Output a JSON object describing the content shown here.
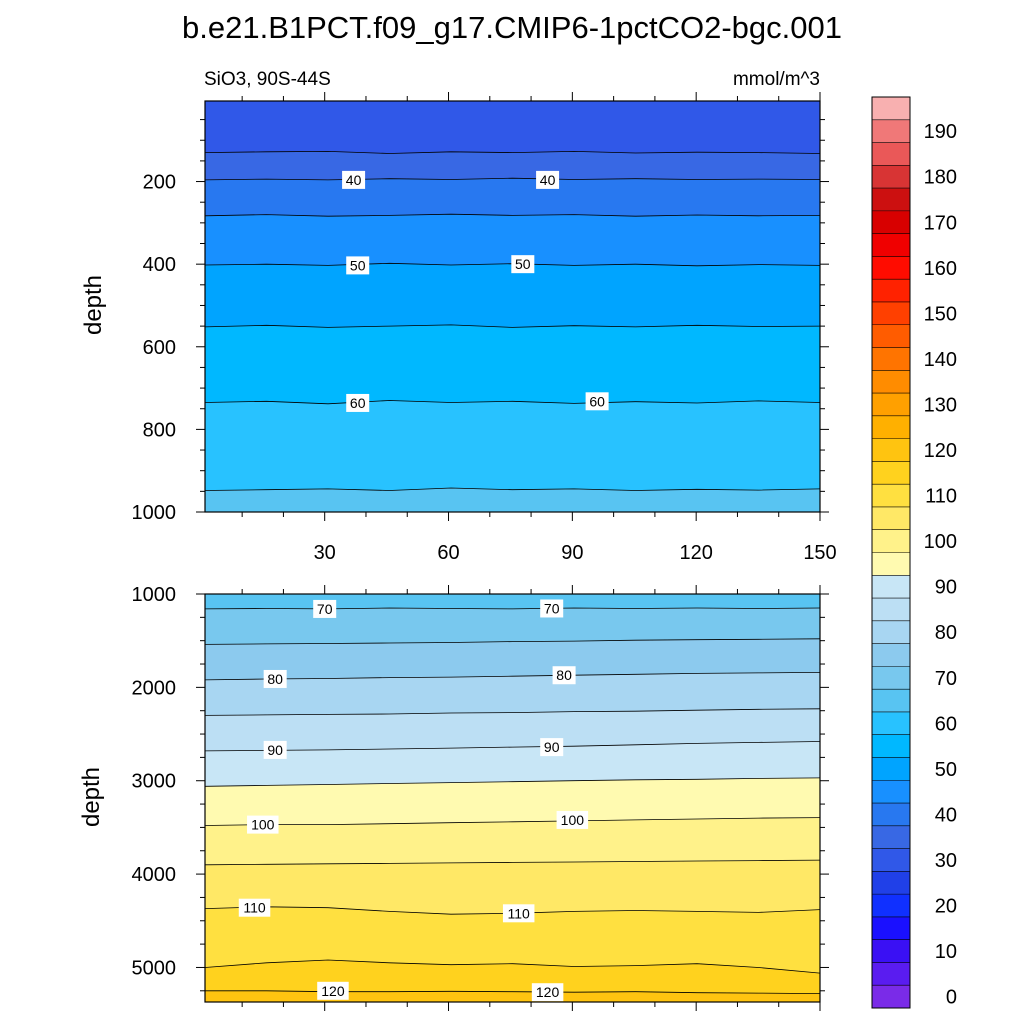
{
  "title": "b.e21.B1PCT.f09_g17.CMIP6-1pctCO2-bgc.001",
  "chart_data": [
    {
      "type": "heatmap",
      "panel": "upper",
      "left_label": "SiO3, 90S-44S",
      "right_label": "mmol/m^3",
      "ylabel": "depth",
      "xlabel": "",
      "xlim": [
        1,
        150
      ],
      "ylim": [
        1000,
        5
      ],
      "x_ticks": [
        30,
        60,
        90,
        120,
        150
      ],
      "x_tick_labels": [
        "30",
        "60",
        "90",
        "120",
        "150"
      ],
      "y_ticks": [
        200,
        400,
        600,
        800,
        1000
      ],
      "y_tick_labels": [
        "200",
        "400",
        "600",
        "800",
        "1000"
      ],
      "contour_levels": [
        35,
        40,
        45,
        50,
        55,
        60,
        65
      ],
      "contours": [
        {
          "level": 35,
          "depth": [
            130,
            128,
            127,
            132,
            128,
            130,
            127,
            131,
            129,
            130,
            132
          ]
        },
        {
          "level": 40,
          "depth": [
            196,
            194,
            196,
            193,
            195,
            192,
            195,
            193,
            195,
            194,
            195
          ]
        },
        {
          "level": 45,
          "depth": [
            283,
            280,
            284,
            282,
            279,
            282,
            280,
            284,
            281,
            283,
            282
          ]
        },
        {
          "level": 50,
          "depth": [
            402,
            400,
            403,
            398,
            402,
            399,
            403,
            400,
            404,
            401,
            403
          ]
        },
        {
          "level": 55,
          "depth": [
            552,
            548,
            553,
            550,
            547,
            553,
            549,
            552,
            548,
            551,
            550
          ]
        },
        {
          "level": 60,
          "depth": [
            735,
            732,
            738,
            730,
            735,
            732,
            737,
            733,
            736,
            731,
            735
          ]
        },
        {
          "level": 65,
          "depth": [
            948,
            946,
            944,
            948,
            942,
            946,
            944,
            948,
            945,
            947,
            944
          ]
        }
      ],
      "contour_labels": [
        {
          "text": "40",
          "x": 37,
          "depth": 196
        },
        {
          "text": "40",
          "x": 84,
          "depth": 196
        },
        {
          "text": "50",
          "x": 38,
          "depth": 403
        },
        {
          "text": "50",
          "x": 78,
          "depth": 400
        },
        {
          "text": "60",
          "x": 38,
          "depth": 736
        },
        {
          "text": "60",
          "x": 96,
          "depth": 732
        }
      ]
    },
    {
      "type": "heatmap",
      "panel": "lower",
      "ylabel": "depth",
      "xlabel": "",
      "xlim": [
        1,
        150
      ],
      "ylim": [
        5370,
        1000
      ],
      "x_ticks": [
        30,
        60,
        90,
        120,
        150
      ],
      "y_ticks": [
        1000,
        2000,
        3000,
        4000,
        5000
      ],
      "y_tick_labels": [
        "1000",
        "2000",
        "3000",
        "4000",
        "5000"
      ],
      "contour_levels": [
        70,
        75,
        80,
        85,
        90,
        95,
        100,
        105,
        110,
        115,
        120
      ],
      "contours": [
        {
          "level": 70,
          "depth": [
            1160,
            1155,
            1160,
            1150,
            1155,
            1160,
            1150,
            1155,
            1150,
            1155,
            1150
          ]
        },
        {
          "level": 75,
          "depth": [
            1540,
            1535,
            1530,
            1525,
            1520,
            1510,
            1505,
            1495,
            1490,
            1485,
            1480
          ]
        },
        {
          "level": 80,
          "depth": [
            1920,
            1910,
            1905,
            1895,
            1890,
            1880,
            1870,
            1860,
            1850,
            1845,
            1840
          ]
        },
        {
          "level": 85,
          "depth": [
            2300,
            2295,
            2290,
            2285,
            2275,
            2270,
            2260,
            2255,
            2245,
            2235,
            2230
          ]
        },
        {
          "level": 90,
          "depth": [
            2680,
            2675,
            2670,
            2660,
            2650,
            2640,
            2630,
            2615,
            2600,
            2590,
            2580
          ]
        },
        {
          "level": 95,
          "depth": [
            3060,
            3050,
            3040,
            3030,
            3020,
            3010,
            3000,
            2990,
            2985,
            2975,
            2970
          ]
        },
        {
          "level": 100,
          "depth": [
            3480,
            3470,
            3470,
            3460,
            3450,
            3440,
            3430,
            3420,
            3410,
            3400,
            3395
          ]
        },
        {
          "level": 105,
          "depth": [
            3900,
            3895,
            3890,
            3885,
            3880,
            3875,
            3870,
            3865,
            3860,
            3855,
            3850
          ]
        },
        {
          "level": 110,
          "depth": [
            4370,
            4350,
            4360,
            4400,
            4430,
            4420,
            4400,
            4390,
            4400,
            4410,
            4380
          ]
        },
        {
          "level": 115,
          "depth": [
            5000,
            4950,
            4920,
            4950,
            4970,
            4960,
            4990,
            4980,
            4960,
            5000,
            5060
          ]
        },
        {
          "level": 120,
          "depth": [
            5250,
            5250,
            5260,
            5260,
            5255,
            5260,
            5265,
            5260,
            5270,
            5275,
            5280
          ]
        }
      ],
      "contour_labels": [
        {
          "text": "70",
          "x": 30,
          "depth": 1160
        },
        {
          "text": "70",
          "x": 85,
          "depth": 1155
        },
        {
          "text": "80",
          "x": 18,
          "depth": 1910
        },
        {
          "text": "80",
          "x": 88,
          "depth": 1870
        },
        {
          "text": "90",
          "x": 18,
          "depth": 2670
        },
        {
          "text": "90",
          "x": 85,
          "depth": 2640
        },
        {
          "text": "100",
          "x": 15,
          "depth": 3470
        },
        {
          "text": "100",
          "x": 90,
          "depth": 3420
        },
        {
          "text": "110",
          "x": 13,
          "depth": 4360
        },
        {
          "text": "110",
          "x": 77,
          "depth": 4420
        },
        {
          "text": "120",
          "x": 32,
          "depth": 5250
        },
        {
          "text": "120",
          "x": 84,
          "depth": 5265
        }
      ]
    }
  ],
  "colorbar": {
    "levels": [
      5,
      10,
      15,
      20,
      25,
      30,
      35,
      40,
      45,
      50,
      55,
      60,
      65,
      70,
      75,
      80,
      85,
      90,
      95,
      100,
      105,
      110,
      115,
      120,
      125,
      130,
      135,
      140,
      145,
      150,
      155,
      160,
      165,
      170,
      175,
      180,
      185,
      190,
      195
    ],
    "colors": [
      "#7a2be8",
      "#5a1cf0",
      "#3a10f4",
      "#1a10ff",
      "#1030ff",
      "#2040e8",
      "#3058e8",
      "#3868e4",
      "#2878f0",
      "#1890ff",
      "#00a4ff",
      "#00b8ff",
      "#28c2ff",
      "#58c4f2",
      "#78c8ee",
      "#8ccaee",
      "#a8d6f2",
      "#bcdff4",
      "#c8e6f6",
      "#fffab0",
      "#fff28a",
      "#ffe866",
      "#ffe040",
      "#ffd21e",
      "#ffc410",
      "#ffb000",
      "#ffa000",
      "#ff8c00",
      "#ff7400",
      "#ff5c00",
      "#ff4000",
      "#ff2200",
      "#ff0c00",
      "#f00000",
      "#d80000",
      "#cc1010",
      "#d83434",
      "#ea5858",
      "#f07878",
      "#f8b0b0"
    ],
    "tick_labels": [
      "0",
      "10",
      "20",
      "30",
      "40",
      "50",
      "60",
      "70",
      "80",
      "90",
      "100",
      "110",
      "120",
      "130",
      "140",
      "150",
      "160",
      "170",
      "180",
      "190"
    ],
    "tick_values": [
      0,
      10,
      20,
      30,
      40,
      50,
      60,
      70,
      80,
      90,
      100,
      110,
      120,
      130,
      140,
      150,
      160,
      170,
      180,
      190
    ]
  }
}
